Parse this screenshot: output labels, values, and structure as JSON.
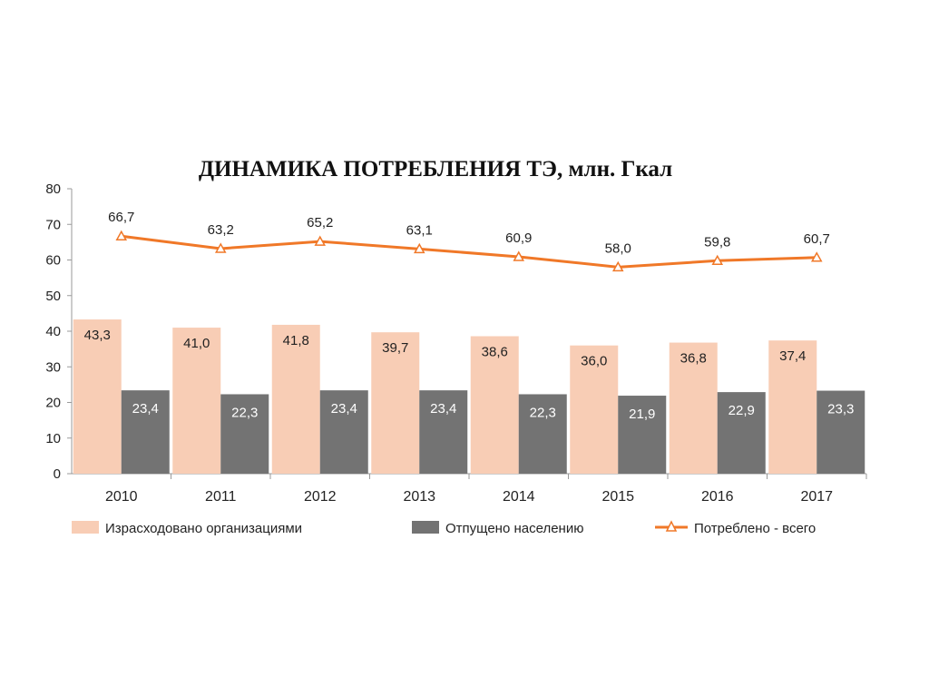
{
  "chart_data": {
    "type": "bar",
    "title": "ДИНАМИКА ПОТРЕБЛЕНИЯ ТЭ, млн. Гкал",
    "categories": [
      "2010",
      "2011",
      "2012",
      "2013",
      "2014",
      "2015",
      "2016",
      "2017"
    ],
    "ylim": [
      0,
      80
    ],
    "yticks": [
      "0",
      "10",
      "20",
      "30",
      "40",
      "50",
      "60",
      "70",
      "80"
    ],
    "grid": false,
    "legend_position": "bottom",
    "series": [
      {
        "name": "Израсходовано организациями",
        "kind": "bar",
        "color": "#f8cdb5",
        "values": [
          43.3,
          41.0,
          41.8,
          39.7,
          38.6,
          36.0,
          36.8,
          37.4
        ],
        "labels": [
          "43,3",
          "41,0",
          "41,8",
          "39,7",
          "38,6",
          "36,0",
          "36,8",
          "37,4"
        ]
      },
      {
        "name": "Отпущено населению",
        "kind": "bar",
        "color": "#737373",
        "values": [
          23.4,
          22.3,
          23.4,
          23.4,
          22.3,
          21.9,
          22.9,
          23.3
        ],
        "labels": [
          "23,4",
          "22,3",
          "23,4",
          "23,4",
          "22,3",
          "21,9",
          "22,9",
          "23,3"
        ]
      },
      {
        "name": "Потреблено - всего",
        "kind": "line",
        "color": "#f07828",
        "marker": "triangle",
        "values": [
          66.7,
          63.2,
          65.2,
          63.1,
          60.9,
          58.0,
          59.8,
          60.7
        ],
        "labels": [
          "66,7",
          "63,2",
          "65,2",
          "63,1",
          "60,9",
          "58,0",
          "59,8",
          "60,7"
        ]
      }
    ]
  }
}
